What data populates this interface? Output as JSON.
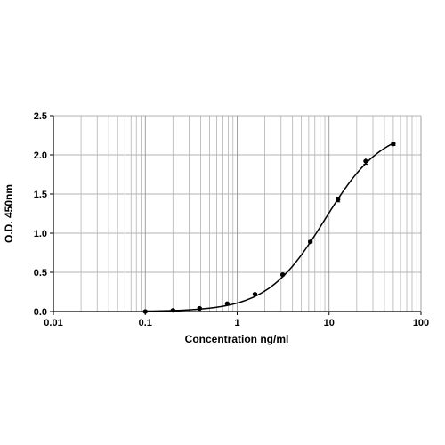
{
  "chart_data": {
    "type": "scatter",
    "xlabel": "Concentration ng/ml",
    "ylabel": "O.D. 450nm",
    "x_scale": "log",
    "xlim": [
      0.01,
      100
    ],
    "ylim": [
      0,
      2.5
    ],
    "x_ticks": [
      "0.01",
      "0.1",
      "1",
      "10",
      "100"
    ],
    "y_ticks": [
      "0.0",
      "0.5",
      "1.0",
      "1.5",
      "2.0",
      "2.5"
    ],
    "grid": true,
    "legend": "none",
    "series": [
      {
        "x": [
          0.1,
          0.2,
          0.39,
          0.78,
          1.56,
          3.13,
          6.25,
          12.5,
          25,
          50
        ],
        "y": [
          0.0,
          0.015,
          0.04,
          0.1,
          0.22,
          0.47,
          0.89,
          1.43,
          1.92,
          2.14
        ],
        "error": [
          0.01,
          0.01,
          0.01,
          0.01,
          0.01,
          0.01,
          0.015,
          0.03,
          0.04,
          0.02
        ],
        "marker": "circle",
        "color": "#000000"
      }
    ],
    "fit_curve": {
      "model": "4PL",
      "bottom": 0.0,
      "top": 2.35,
      "ec50": 9.0,
      "hill": 1.38,
      "color": "#000000"
    }
  }
}
